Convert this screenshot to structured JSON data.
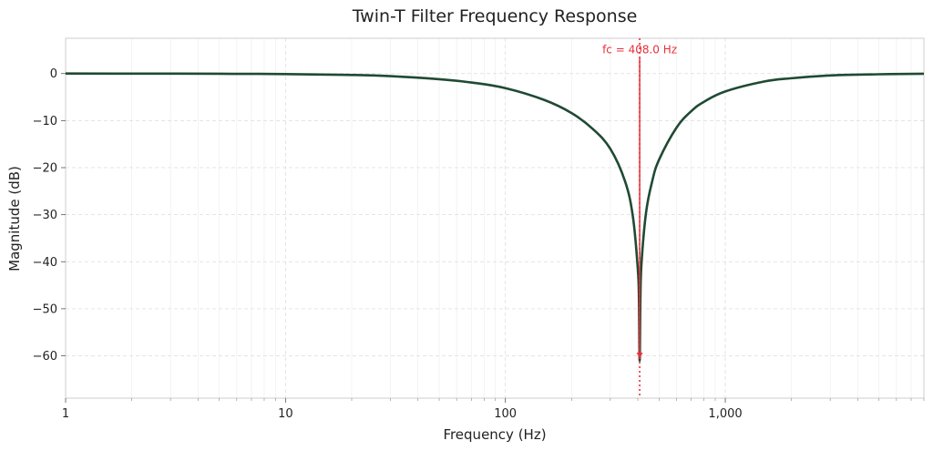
{
  "chart_data": {
    "type": "line",
    "title": "Twin-T Filter Frequency Response",
    "xlabel": "Frequency (Hz)",
    "ylabel": "Magnitude (dB)",
    "xscale": "log",
    "xlim": [
      1,
      8000
    ],
    "ylim": [
      -69,
      7.5
    ],
    "grid": true,
    "x_ticks": [
      1,
      10,
      100,
      1000
    ],
    "x_tick_labels": [
      "1",
      "10",
      "100",
      "1,000"
    ],
    "y_ticks": [
      0,
      -10,
      -20,
      -30,
      -40,
      -50,
      -60
    ],
    "y_tick_labels": [
      "0",
      "−10",
      "−20",
      "−30",
      "−40",
      "−50",
      "−60"
    ],
    "series": [
      {
        "name": "Magnitude",
        "color": "#1f4a33",
        "x": [
          1,
          2,
          5,
          10,
          20,
          30,
          50,
          70,
          100,
          150,
          200,
          250,
          300,
          350,
          380,
          400,
          405,
          408,
          411,
          416,
          436,
          464,
          500,
          600,
          700,
          800,
          1000,
          1500,
          2000,
          3000,
          5000,
          8000
        ],
        "values": [
          0,
          -0.01,
          -0.05,
          -0.11,
          -0.3,
          -0.55,
          -1.2,
          -1.9,
          -3.1,
          -5.6,
          -8.4,
          -11.8,
          -16.0,
          -22.9,
          -30.4,
          -41.5,
          -48.0,
          -61.0,
          -48.0,
          -40.2,
          -29.6,
          -23.1,
          -18.3,
          -11.5,
          -8.0,
          -6.0,
          -3.8,
          -1.7,
          -1.0,
          -0.4,
          -0.15,
          -0.05
        ]
      }
    ],
    "annotations": [
      {
        "text": "fc = 408.0 Hz",
        "x": 408,
        "color": "#e8303a",
        "arrow_from_y": 3.3,
        "arrow_to_y": -60.5
      }
    ]
  }
}
